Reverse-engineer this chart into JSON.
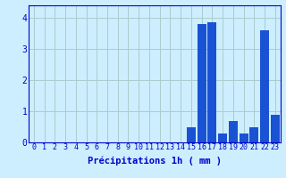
{
  "hours": [
    0,
    1,
    2,
    3,
    4,
    5,
    6,
    7,
    8,
    9,
    10,
    11,
    12,
    13,
    14,
    15,
    16,
    17,
    18,
    19,
    20,
    21,
    22,
    23
  ],
  "values": [
    0,
    0,
    0,
    0,
    0,
    0,
    0,
    0,
    0,
    0,
    0,
    0,
    0,
    0,
    0,
    0.5,
    3.8,
    3.85,
    0.3,
    0.7,
    0.3,
    0.5,
    3.6,
    0.9
  ],
  "bar_color": "#1a52d4",
  "background_color": "#cceeff",
  "grid_color": "#aacccc",
  "text_color": "#0000cc",
  "xlabel": "Précipitations 1h ( mm )",
  "ylim": [
    0,
    4.4
  ],
  "yticks": [
    0,
    1,
    2,
    3,
    4
  ],
  "xlabel_fontsize": 7.5,
  "tick_fontsize": 6,
  "ytick_fontsize": 7
}
